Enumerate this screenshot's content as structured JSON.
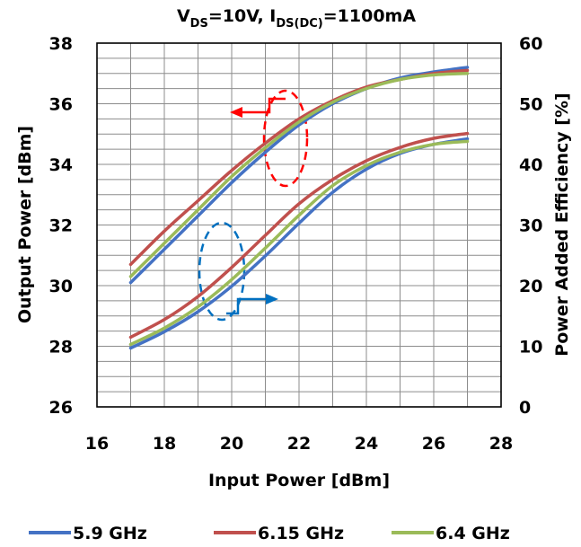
{
  "chart_data": {
    "type": "line",
    "title": "V_DS=10V, I_DS(DC)=1100mA",
    "title_parts": {
      "v": "V",
      "v_sub": "DS",
      "v_value": "=10V, ",
      "i": "I",
      "i_sub": "DS(DC)",
      "i_value": "=1100mA"
    },
    "xlabel": "Input Power [dBm]",
    "ylabel": "Output Power [dBm]",
    "y2label": "Power Added Efficiency [%]",
    "xlim": [
      16,
      28
    ],
    "ylim": [
      26,
      38
    ],
    "y2lim": [
      0,
      60
    ],
    "x_ticks": [
      "16",
      "18",
      "20",
      "22",
      "24",
      "26",
      "28"
    ],
    "y_ticks": [
      "26",
      "28",
      "30",
      "32",
      "34",
      "36",
      "38"
    ],
    "y2_ticks": [
      "0",
      "10",
      "20",
      "30",
      "40",
      "50",
      "60"
    ],
    "grid": true,
    "legend_position": "bottom",
    "x": [
      17,
      18,
      19,
      20,
      21,
      22,
      23,
      24,
      25,
      26,
      27
    ],
    "series": [
      {
        "name": "5.9 GHz",
        "color": "#4472C4",
        "pout": [
          30.1,
          31.2,
          32.3,
          33.4,
          34.4,
          35.3,
          36.0,
          36.5,
          36.85,
          37.05,
          37.2
        ],
        "pae": [
          9.7,
          12.4,
          15.7,
          19.9,
          24.9,
          30.3,
          35.4,
          39.2,
          41.8,
          43.3,
          44.2
        ]
      },
      {
        "name": "6.15 GHz",
        "color": "#C0504D",
        "pout": [
          30.7,
          31.8,
          32.8,
          33.8,
          34.7,
          35.5,
          36.1,
          36.55,
          36.8,
          37.0,
          37.1
        ],
        "pae": [
          11.5,
          14.4,
          18.2,
          23.0,
          28.3,
          33.5,
          37.5,
          40.6,
          42.8,
          44.3,
          45.1
        ]
      },
      {
        "name": "6.4 GHz",
        "color": "#9BBB59",
        "pout": [
          30.3,
          31.4,
          32.5,
          33.6,
          34.55,
          35.4,
          36.05,
          36.5,
          36.8,
          36.95,
          37.0
        ],
        "pae": [
          10.3,
          13.0,
          16.5,
          21.0,
          26.2,
          31.6,
          36.5,
          39.8,
          42.0,
          43.3,
          43.8
        ]
      }
    ],
    "annotations": [
      {
        "type": "ellipse",
        "color": "#FF0000",
        "style": "dashed",
        "group": "Output Power",
        "arrow": "left"
      },
      {
        "type": "ellipse",
        "color": "#0070C0",
        "style": "dashed",
        "group": "Power Added Efficiency",
        "arrow": "right"
      }
    ]
  }
}
